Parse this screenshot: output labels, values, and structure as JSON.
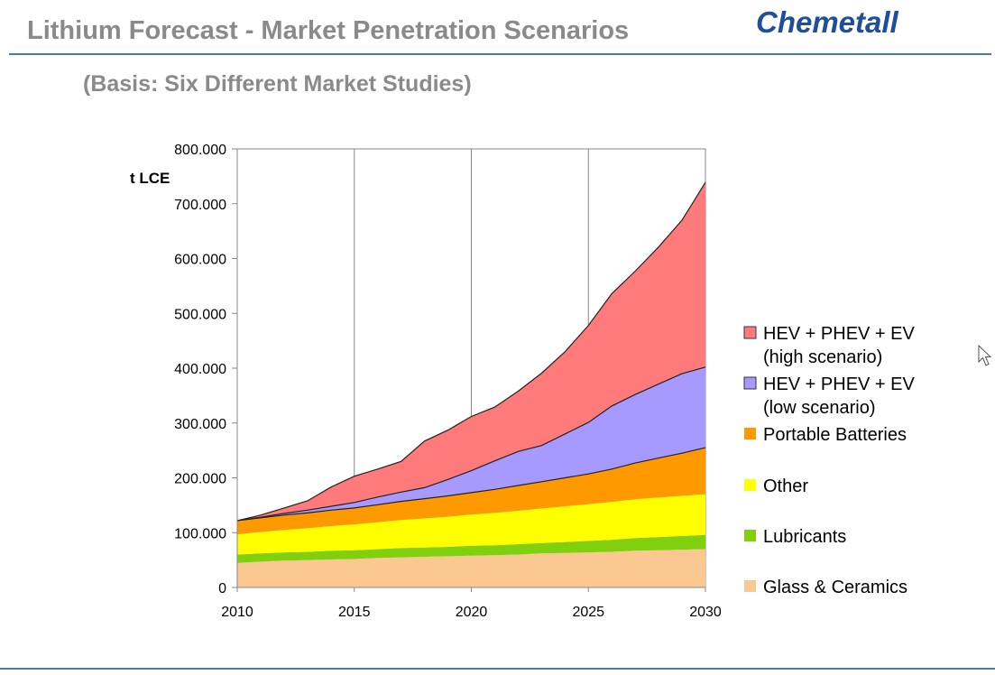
{
  "header": {
    "title": "Lithium Forecast - Market Penetration Scenarios",
    "brand": "Chemetall",
    "subtitle": "(Basis: Six Different Market Studies)"
  },
  "chart_data": {
    "type": "area",
    "stacked": true,
    "ylabel": "t LCE",
    "xlabel": "",
    "xlim": [
      2010,
      2030
    ],
    "ylim": [
      0,
      800000
    ],
    "x_ticks": [
      "2010",
      "2015",
      "2020",
      "2025",
      "2030"
    ],
    "y_ticks": [
      "0",
      "100.000",
      "200.000",
      "300.000",
      "400.000",
      "500.000",
      "600.000",
      "700.000",
      "800.000"
    ],
    "grid": "vertical",
    "legend_position": "right",
    "x": [
      2010,
      2011,
      2012,
      2013,
      2014,
      2015,
      2016,
      2017,
      2018,
      2019,
      2020,
      2021,
      2022,
      2023,
      2024,
      2025,
      2026,
      2027,
      2028,
      2029,
      2030
    ],
    "series": [
      {
        "name": "Glass & Ceramics",
        "color": "#fac890",
        "values": [
          45000,
          47000,
          49000,
          50000,
          51000,
          52000,
          54000,
          55000,
          56000,
          57000,
          58000,
          59000,
          60000,
          62000,
          63000,
          64000,
          65000,
          67000,
          68000,
          69000,
          70000
        ]
      },
      {
        "name": "Lubricants",
        "color": "#80d010",
        "values": [
          15000,
          15000,
          15000,
          15000,
          16000,
          16000,
          16000,
          17000,
          17000,
          17000,
          18000,
          18000,
          19000,
          19000,
          20000,
          21000,
          22000,
          23000,
          24000,
          25000,
          26000
        ]
      },
      {
        "name": "Other",
        "color": "#ffff00",
        "values": [
          37000,
          39000,
          41000,
          43000,
          45000,
          47000,
          49000,
          51000,
          53000,
          55000,
          57000,
          59000,
          61000,
          63000,
          65000,
          67000,
          69000,
          71000,
          72000,
          73000,
          74000
        ]
      },
      {
        "name": "Portable Batteries",
        "color": "#ff9900",
        "values": [
          25000,
          26000,
          27000,
          28000,
          29000,
          30000,
          32000,
          34000,
          36000,
          38000,
          40000,
          43000,
          46000,
          49000,
          52000,
          55000,
          60000,
          66000,
          72000,
          78000,
          85000
        ]
      },
      {
        "name": "HEV + PHEV + EV (low scenario)",
        "color": "#a699ff",
        "values": [
          0,
          1000,
          3000,
          5000,
          7000,
          10000,
          14000,
          17000,
          20000,
          30000,
          40000,
          52000,
          62000,
          66000,
          80000,
          94000,
          115000,
          125000,
          135000,
          145000,
          147000
        ]
      },
      {
        "name": "HEV + PHEV + EV (high scenario)",
        "color": "#ff7b7b",
        "values": [
          0,
          4000,
          10000,
          17000,
          35000,
          48000,
          51000,
          56000,
          85000,
          90000,
          99000,
          98000,
          110000,
          132000,
          150000,
          177000,
          205000,
          225000,
          250000,
          280000,
          337000
        ]
      }
    ],
    "legend": [
      {
        "line1": "HEV + PHEV + EV",
        "line2": "(high scenario)",
        "color": "#ff7b7b"
      },
      {
        "line1": "HEV + PHEV + EV",
        "line2": "(low scenario)",
        "color": "#a699ff"
      },
      {
        "line1": "Portable Batteries",
        "line2": "",
        "color": "#ff9900"
      },
      {
        "line1": "Other",
        "line2": "",
        "color": "#ffff00"
      },
      {
        "line1": "Lubricants",
        "line2": "",
        "color": "#80d010"
      },
      {
        "line1": "Glass & Ceramics",
        "line2": "",
        "color": "#fac890"
      }
    ]
  }
}
